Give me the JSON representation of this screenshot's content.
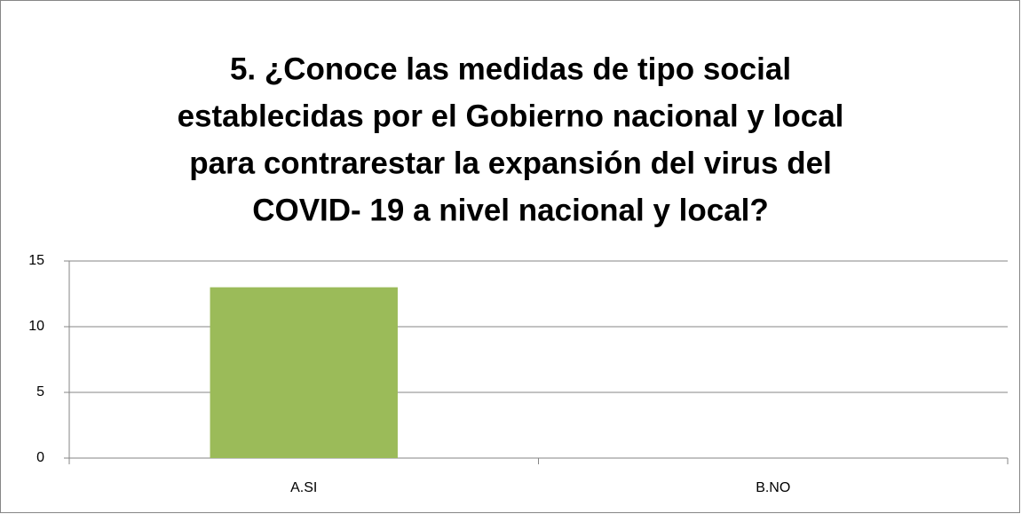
{
  "chart_data": {
    "type": "bar",
    "title": [
      "5. ¿Conoce las medidas de tipo social",
      "establecidas por el Gobierno nacional y local",
      "para contrarestar la expansión del virus del",
      "COVID- 19 a nivel nacional y local?"
    ],
    "categories": [
      "A.SI",
      "B.NO"
    ],
    "values": [
      13,
      0
    ],
    "color": "#9bbb59",
    "ylim": [
      0,
      15
    ],
    "yticks": [
      0,
      5,
      10,
      15
    ],
    "grid": true
  }
}
